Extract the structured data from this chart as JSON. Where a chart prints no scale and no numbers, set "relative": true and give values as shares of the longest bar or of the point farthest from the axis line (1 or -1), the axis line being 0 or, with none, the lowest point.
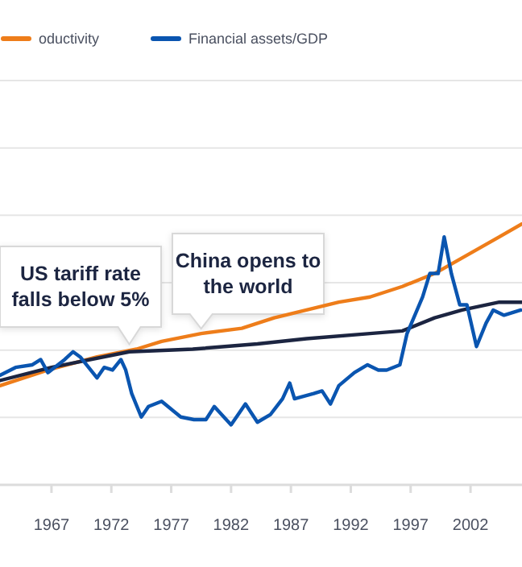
{
  "chart_data": {
    "type": "line",
    "relative": true,
    "grid": true,
    "legend": "top left",
    "xlim": [
      1962.7,
      2006.3
    ],
    "xticks": [
      1967,
      1972,
      1977,
      1982,
      1987,
      1992,
      1997,
      2002
    ],
    "annotations": [
      {
        "text": "US tariff rate falls below 5%",
        "x": 1973.5,
        "y": 0.52
      },
      {
        "text": "China opens to the world",
        "x": 1979.5,
        "y": 0.58
      }
    ],
    "series": [
      {
        "name": "oductivity",
        "color": "#ee7d1a",
        "x": [
          1962.7,
          1966.7,
          1970.8,
          1974.1,
          1976.2,
          1979.5,
          1982.9,
          1985.6,
          1988.3,
          1991.0,
          1993.6,
          1996.3,
          1999.0,
          2001.7,
          2004.4,
          2006.3
        ],
        "values": [
          0.38,
          0.44,
          0.49,
          0.52,
          0.55,
          0.58,
          0.6,
          0.64,
          0.67,
          0.7,
          0.72,
          0.76,
          0.81,
          0.88,
          0.95,
          1.0
        ]
      },
      {
        "color": "#1c2541",
        "x": [
          1962.7,
          1967,
          1973.5,
          1978.8,
          1984.2,
          1988.3,
          1993.6,
          1996.3,
          1999,
          2001.3,
          2004.4,
          2006.3
        ],
        "values": [
          0.4,
          0.45,
          0.51,
          0.52,
          0.54,
          0.56,
          0.58,
          0.59,
          0.64,
          0.67,
          0.7,
          0.7
        ]
      },
      {
        "name": "Financial assets/GDP",
        "color": "#0a55b0",
        "x": [
          1962.7,
          1964.0,
          1965.4,
          1966.1,
          1966.7,
          1968.1,
          1968.8,
          1969.4,
          1970.8,
          1971.4,
          1972.1,
          1972.8,
          1973.2,
          1973.7,
          1974.5,
          1975.1,
          1976.2,
          1977.8,
          1978.9,
          1979.9,
          1980.6,
          1982.0,
          1983.2,
          1984.2,
          1985.3,
          1986.3,
          1986.9,
          1987.3,
          1988.9,
          1989.6,
          1990.3,
          1991.0,
          1992.3,
          1993.4,
          1994.3,
          1995.0,
          1996.1,
          1996.7,
          1998.0,
          1998.6,
          1999.3,
          1999.8,
          2000.4,
          2001.1,
          2001.7,
          2002.5,
          2003.3,
          2003.9,
          2004.8,
          2006.2
        ],
        "values": [
          0.42,
          0.45,
          0.46,
          0.48,
          0.43,
          0.48,
          0.51,
          0.49,
          0.41,
          0.45,
          0.44,
          0.48,
          0.44,
          0.35,
          0.26,
          0.3,
          0.32,
          0.26,
          0.25,
          0.25,
          0.3,
          0.23,
          0.31,
          0.24,
          0.27,
          0.33,
          0.39,
          0.33,
          0.35,
          0.36,
          0.31,
          0.38,
          0.43,
          0.46,
          0.44,
          0.44,
          0.46,
          0.58,
          0.72,
          0.81,
          0.81,
          0.95,
          0.81,
          0.69,
          0.69,
          0.53,
          0.62,
          0.67,
          0.65,
          0.67
        ]
      }
    ]
  }
}
